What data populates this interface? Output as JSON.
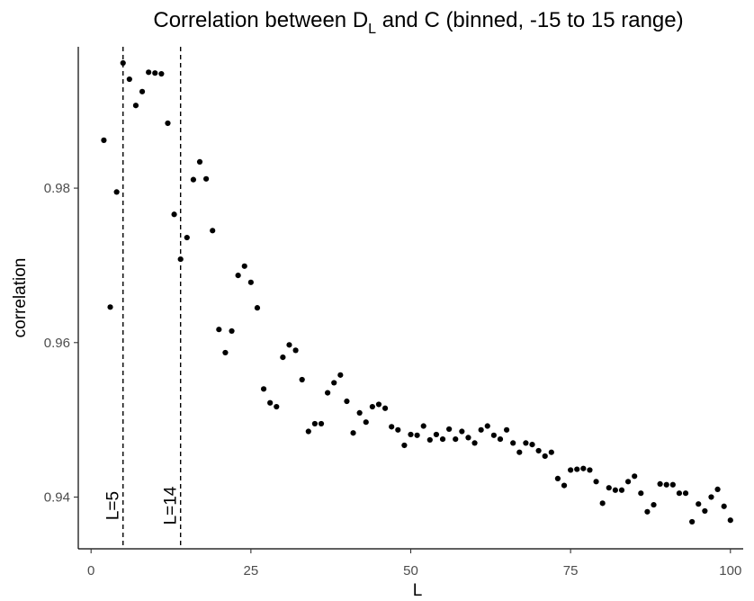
{
  "chart_data": {
    "type": "scatter",
    "title_main": "Correlation between D",
    "title_sub": "L",
    "title_rest": " and C (binned, -15 to 15 range)",
    "xlabel": "L",
    "ylabel": "correlation",
    "xlim": [
      -2,
      102
    ],
    "ylim": [
      0.9333,
      0.9983
    ],
    "x_ticks": [
      0,
      25,
      50,
      75,
      100
    ],
    "x_tick_labels": [
      "0",
      "25",
      "50",
      "75",
      "100"
    ],
    "y_ticks": [
      0.94,
      0.96,
      0.98
    ],
    "y_tick_labels": [
      "0.94",
      "0.96",
      "0.98"
    ],
    "grid": false,
    "reference_lines": [
      {
        "x": 5,
        "label": "L=5"
      },
      {
        "x": 14,
        "label": "L=14"
      }
    ],
    "x": [
      2,
      3,
      4,
      5,
      6,
      7,
      8,
      9,
      10,
      11,
      12,
      13,
      14,
      15,
      16,
      17,
      18,
      19,
      20,
      21,
      22,
      23,
      24,
      25,
      26,
      27,
      28,
      29,
      30,
      31,
      32,
      33,
      34,
      35,
      36,
      37,
      38,
      39,
      40,
      41,
      42,
      43,
      44,
      45,
      46,
      47,
      48,
      49,
      50,
      51,
      52,
      53,
      54,
      55,
      56,
      57,
      58,
      59,
      60,
      61,
      62,
      63,
      64,
      65,
      66,
      67,
      68,
      69,
      70,
      71,
      72,
      73,
      74,
      75,
      76,
      77,
      78,
      79,
      80,
      81,
      82,
      83,
      84,
      85,
      86,
      87,
      88,
      89,
      90,
      91,
      92,
      93,
      94,
      95,
      96,
      97,
      98,
      99,
      100
    ],
    "y": [
      0.9862,
      0.9646,
      0.9795,
      0.9962,
      0.9941,
      0.9907,
      0.9925,
      0.995,
      0.9949,
      0.9948,
      0.9884,
      0.9766,
      0.9708,
      0.9736,
      0.9811,
      0.9834,
      0.9812,
      0.9745,
      0.9617,
      0.9587,
      0.9615,
      0.9687,
      0.9699,
      0.9678,
      0.9645,
      0.954,
      0.9522,
      0.9517,
      0.9581,
      0.9597,
      0.959,
      0.9552,
      0.9485,
      0.9495,
      0.9495,
      0.9535,
      0.9548,
      0.9558,
      0.9524,
      0.9483,
      0.9509,
      0.9497,
      0.9517,
      0.952,
      0.9515,
      0.9491,
      0.9487,
      0.9467,
      0.9481,
      0.948,
      0.9492,
      0.9474,
      0.9481,
      0.9475,
      0.9488,
      0.9475,
      0.9485,
      0.9477,
      0.947,
      0.9487,
      0.9492,
      0.948,
      0.9475,
      0.9487,
      0.947,
      0.9458,
      0.947,
      0.9468,
      0.946,
      0.9453,
      0.9458,
      0.9424,
      0.9415,
      0.9435,
      0.9436,
      0.9437,
      0.9435,
      0.942,
      0.9392,
      0.9412,
      0.9409,
      0.9409,
      0.942,
      0.9427,
      0.9405,
      0.9381,
      0.939,
      0.9417,
      0.9416,
      0.9416,
      0.9405,
      0.9405,
      0.9368,
      0.9391,
      0.9382,
      0.94,
      0.941,
      0.9388,
      0.937
    ]
  }
}
